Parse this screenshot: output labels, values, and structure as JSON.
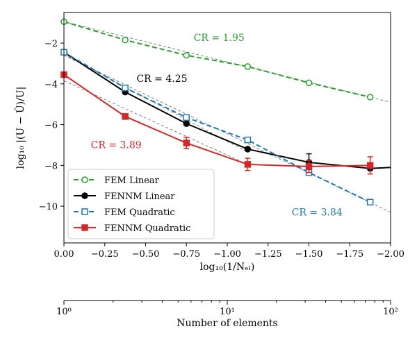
{
  "chart_data": {
    "type": "line",
    "xlabel": "log₁₀(1/Nₑₗ)",
    "ylabel": "log₁₀ |(U − Û)/U|",
    "xlim": [
      0.0,
      -2.0
    ],
    "ylim": [
      -11.8,
      -0.5
    ],
    "x_ticks": [
      0.0,
      -0.25,
      -0.5,
      -0.75,
      -1.0,
      -1.25,
      -1.5,
      -1.75,
      -2.0
    ],
    "x_tick_labels": [
      "0.00",
      "−0.25",
      "−0.50",
      "−0.75",
      "−1.00",
      "−1.25",
      "−1.50",
      "−1.75",
      "−2.00"
    ],
    "y_ticks": [
      -2,
      -4,
      -6,
      -8,
      -10
    ],
    "y_tick_labels": [
      "−2",
      "−4",
      "−6",
      "−8",
      "−10"
    ],
    "series": [
      {
        "name": "FEM Linear",
        "color": "#2ca02c",
        "marker": "circle-open",
        "dashed": true,
        "x": [
          0.0,
          -0.375,
          -0.75,
          -1.125,
          -1.5,
          -1.875
        ],
        "y": [
          -0.95,
          -1.85,
          -2.6,
          -3.15,
          -3.95,
          -4.65
        ],
        "err": [
          0,
          0,
          0,
          0,
          0,
          0
        ]
      },
      {
        "name": "FENNM Linear",
        "color": "#000000",
        "marker": "circle-filled",
        "dashed": false,
        "x": [
          0.0,
          -0.375,
          -0.75,
          -1.125,
          -1.5,
          -1.875,
          -2.0
        ],
        "y": [
          -2.45,
          -4.4,
          -5.95,
          -7.2,
          -7.85,
          -8.15,
          -8.1
        ],
        "err": [
          0,
          0,
          0,
          0,
          0.42,
          0,
          0
        ]
      },
      {
        "name": "FEM Quadratic",
        "color": "#1f77b4",
        "marker": "square-open",
        "dashed": true,
        "x": [
          0.0,
          -0.375,
          -0.75,
          -1.125,
          -1.5,
          -1.875
        ],
        "y": [
          -2.45,
          -4.2,
          -5.65,
          -6.75,
          -8.35,
          -9.8
        ],
        "err": [
          0,
          0,
          0,
          0,
          0,
          0
        ]
      },
      {
        "name": "FENNM Quadratic",
        "color": "#d62728",
        "marker": "square-filled",
        "dashed": false,
        "x": [
          0.0,
          -0.375,
          -0.75,
          -1.125,
          -1.5,
          -1.875
        ],
        "y": [
          -3.55,
          -5.6,
          -6.9,
          -7.95,
          -8.05,
          -8.0
        ],
        "err": [
          0,
          0,
          0.28,
          0.3,
          0.3,
          0.42
        ]
      }
    ],
    "fit_lines": [
      {
        "color": "#808080",
        "x": [
          0.0,
          -2.0
        ],
        "y": [
          -0.95,
          -4.9
        ]
      },
      {
        "color": "#808080",
        "x": [
          0.0,
          -1.125
        ],
        "y": [
          -2.55,
          -7.35
        ]
      },
      {
        "color": "#808080",
        "x": [
          0.0,
          -2.0
        ],
        "y": [
          -2.6,
          -10.3
        ]
      },
      {
        "color": "#808080",
        "x": [
          0.0,
          -1.125
        ],
        "y": [
          -3.85,
          -7.95
        ]
      }
    ],
    "annotations": [
      {
        "text": "CR = 1.95",
        "color": "#2ca02c",
        "x": -0.95,
        "y": -1.9
      },
      {
        "text": "CR = 4.25",
        "color": "#000000",
        "x": -0.6,
        "y": -3.9
      },
      {
        "text": "CR = 3.89",
        "color": "#d62728",
        "x": -0.32,
        "y": -7.15
      },
      {
        "text": "CR = 3.84",
        "color": "#1f77b4",
        "x": -1.55,
        "y": -10.45
      }
    ],
    "legend_position": "lower-left",
    "secondary_axis": {
      "label": "Number of elements",
      "scale": "log",
      "range": [
        1,
        100
      ],
      "tick_labels": [
        "10⁰",
        "10¹",
        "10²"
      ],
      "minor_ticks": [
        2,
        3,
        4,
        5,
        6,
        7,
        8,
        9,
        20,
        30,
        40,
        50,
        60,
        70,
        80,
        90
      ]
    }
  }
}
